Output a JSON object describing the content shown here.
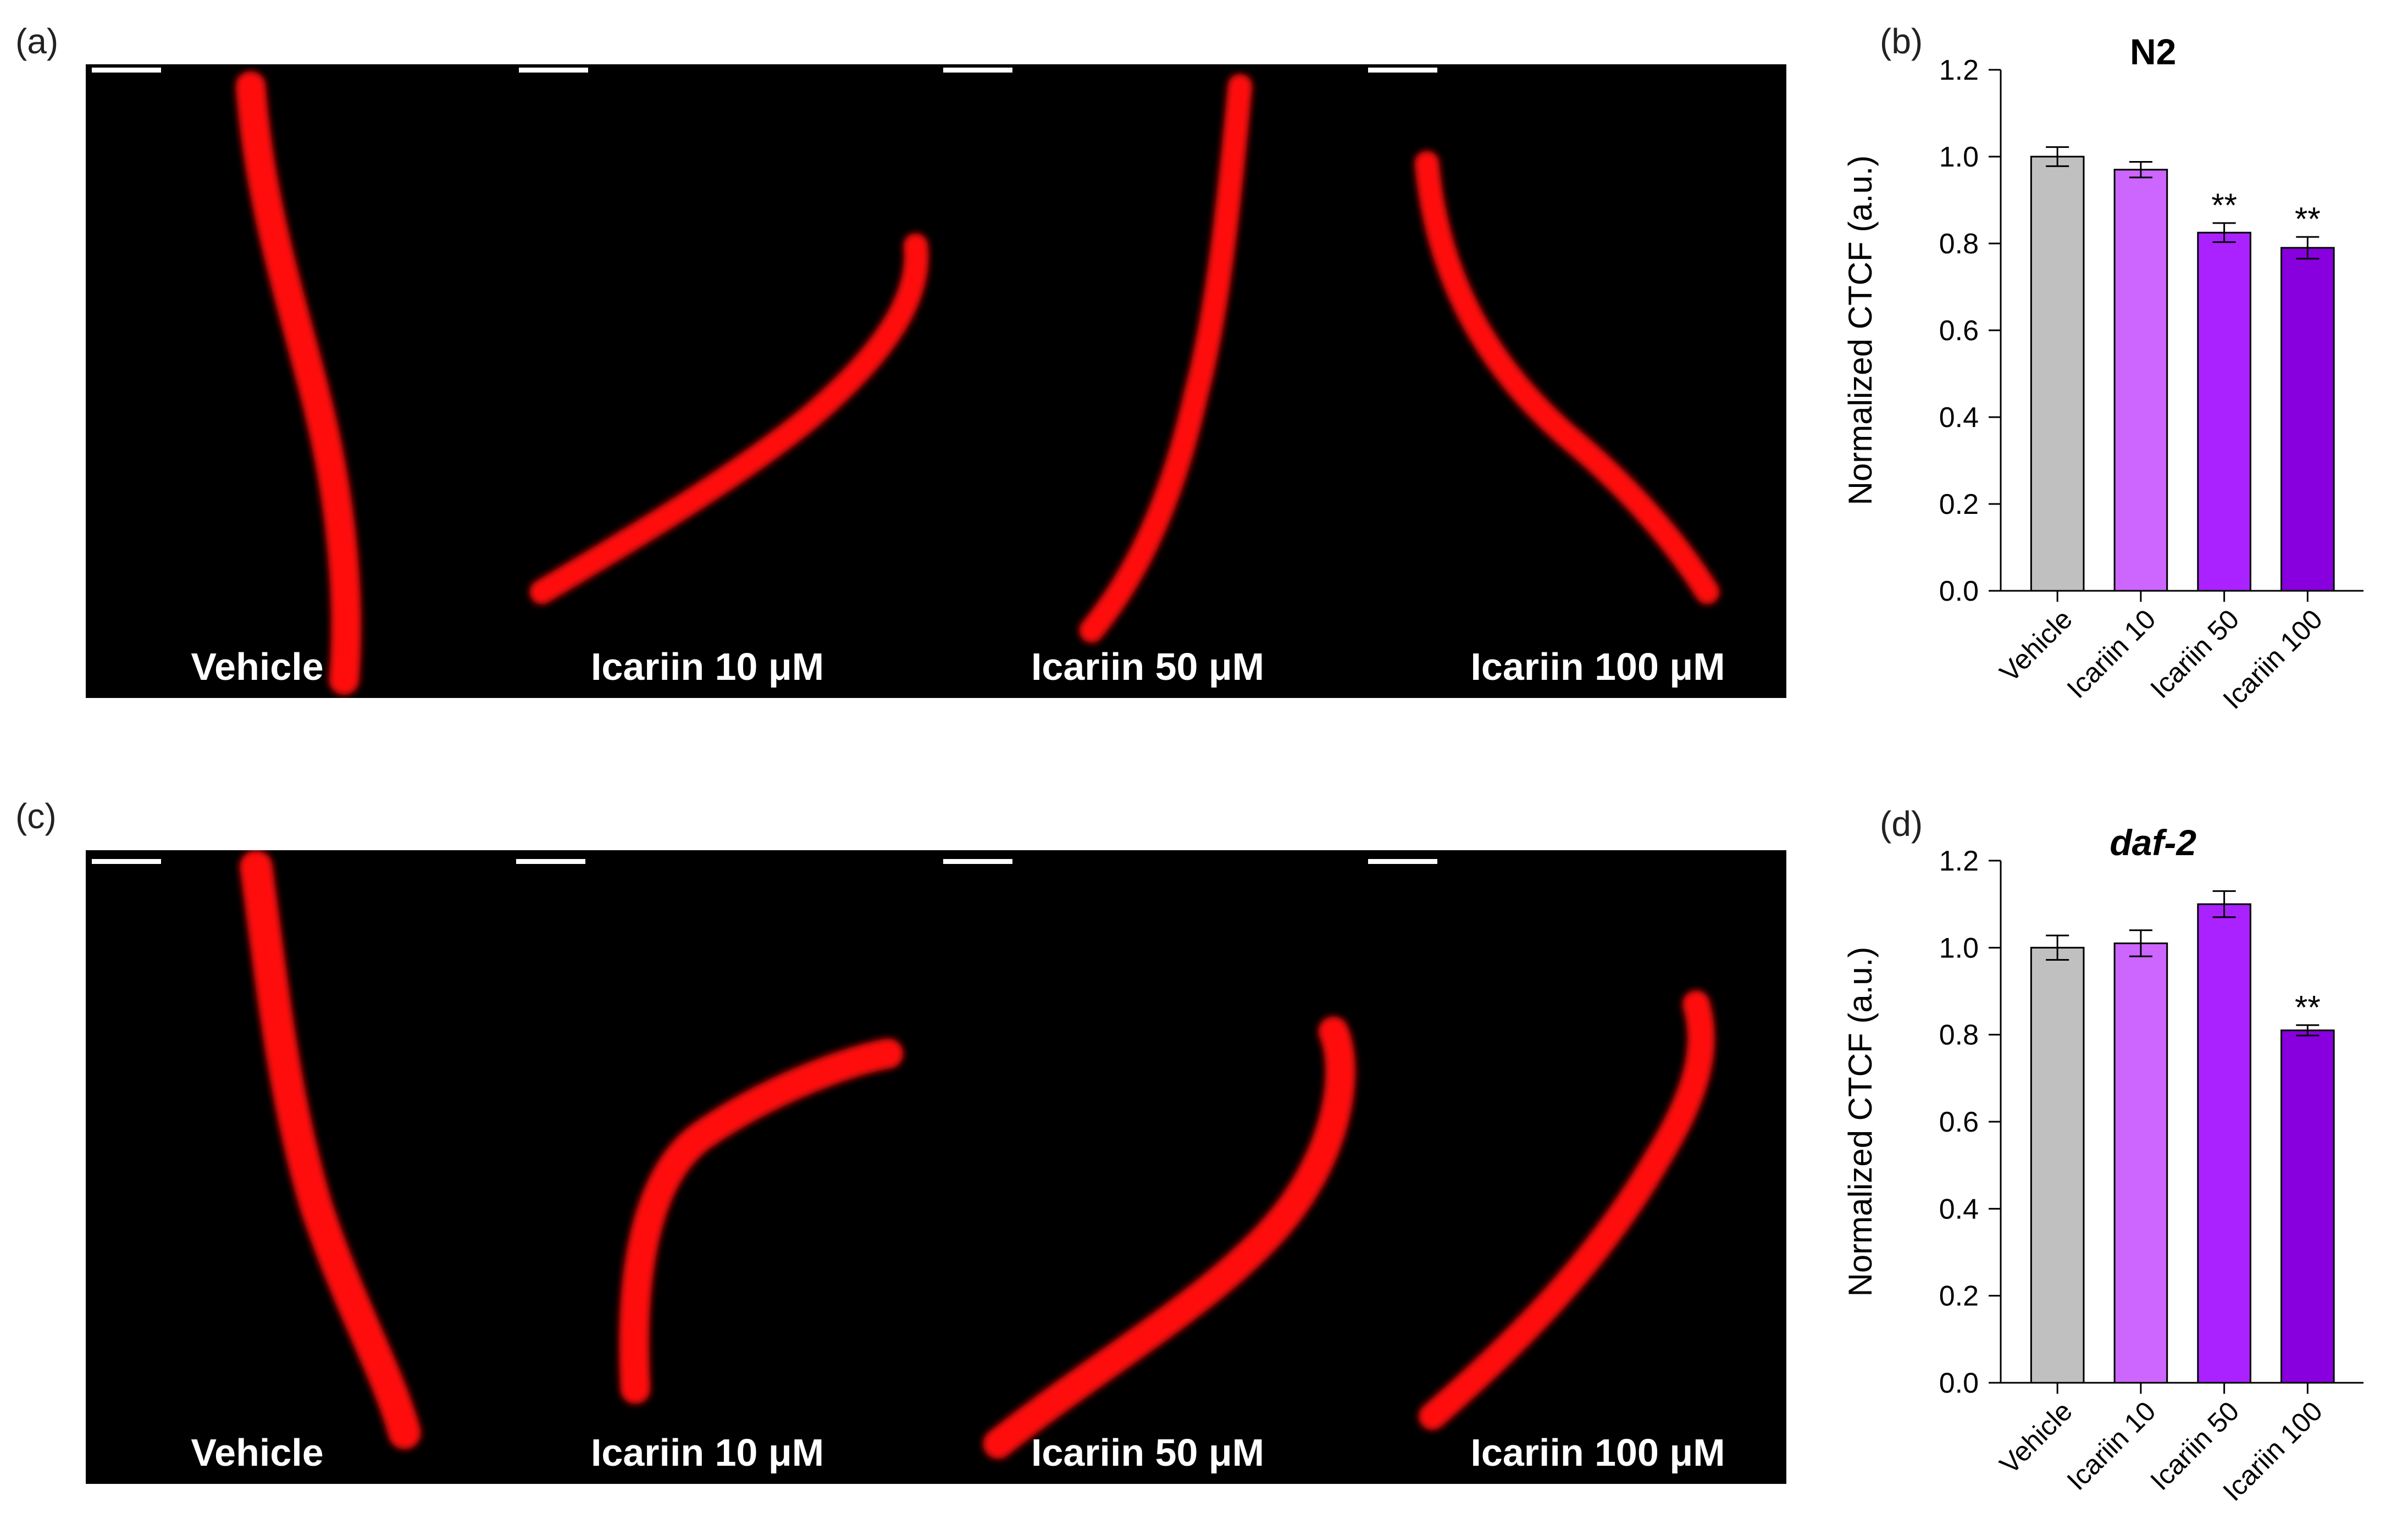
{
  "panels": {
    "a": {
      "letter": "(a)",
      "labels": [
        "Vehicle",
        "Icariin 10 μM",
        "Icariin 50 μM",
        "Icariin 100 μM"
      ]
    },
    "b": {
      "letter": "(b)"
    },
    "c": {
      "letter": "(c)",
      "labels": [
        "Vehicle",
        "Icariin 10 μM",
        "Icariin 50 μM",
        "Icariin 100 μM"
      ]
    },
    "d": {
      "letter": "(d)"
    }
  },
  "colors": {
    "worm": "#ff1010",
    "bars": [
      "#c0c0c0",
      "#cc66ff",
      "#aa22ff",
      "#8800dd"
    ]
  },
  "chart_data": [
    {
      "type": "bar",
      "title": "N2",
      "title_italic": false,
      "categories": [
        "Vehicle",
        "Icariin 10",
        "Icariin 50",
        "Icariin 100"
      ],
      "values": [
        1.0,
        0.97,
        0.825,
        0.79
      ],
      "errors": [
        0.022,
        0.018,
        0.022,
        0.025
      ],
      "significance": [
        "",
        "",
        "**",
        "**"
      ],
      "ylabel": "Normalized CTCF (a.u.)",
      "ylim": [
        0,
        1.2
      ],
      "yticks": [
        "0.0",
        "0.2",
        "0.4",
        "0.6",
        "0.8",
        "1.0",
        "1.2"
      ],
      "grid": false
    },
    {
      "type": "bar",
      "title": "daf-2",
      "title_italic": true,
      "categories": [
        "Vehicle",
        "Icariin 10",
        "Icariin 50",
        "Icariin 100"
      ],
      "values": [
        1.0,
        1.01,
        1.1,
        0.81
      ],
      "errors": [
        0.028,
        0.03,
        0.03,
        0.012
      ],
      "significance": [
        "",
        "",
        "",
        "**"
      ],
      "ylabel": "Normalized CTCF (a.u.)",
      "ylim": [
        0,
        1.2
      ],
      "yticks": [
        "0.0",
        "0.2",
        "0.4",
        "0.6",
        "0.8",
        "1.0",
        "1.2"
      ],
      "grid": false
    }
  ]
}
